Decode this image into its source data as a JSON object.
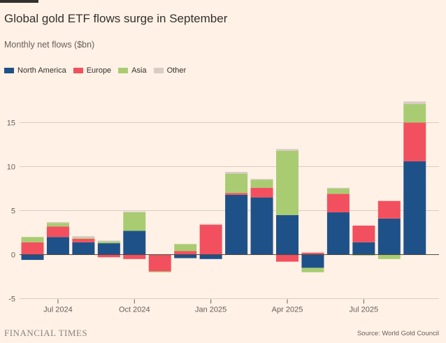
{
  "header": {
    "title": "Global gold ETF flows surge in September",
    "subtitle": "Monthly net flows ($bn)"
  },
  "footer": {
    "logo": "FINANCIAL TIMES",
    "source": "Source: World Gold Council"
  },
  "colors": {
    "background": "#fff1e5",
    "north_america": "#1f5189",
    "europe": "#f2505f",
    "asia": "#a9cc72",
    "other": "#d8ccc4",
    "grid": "#d9cdc3",
    "zero_line": "#4d4845"
  },
  "chart_data": {
    "type": "bar",
    "stacked": true,
    "title": "Global gold ETF flows surge in September",
    "subtitle": "Monthly net flows ($bn)",
    "categories": [
      "Jun 2024",
      "Jul 2024",
      "Aug 2024",
      "Sep 2024",
      "Oct 2024",
      "Nov 2024",
      "Dec 2024",
      "Jan 2025",
      "Feb 2025",
      "Mar 2025",
      "Apr 2025",
      "May 2025",
      "Jun 2025",
      "Jul 2025",
      "Aug 2025",
      "Sep 2025"
    ],
    "x_tick_labels": [
      {
        "index": 1,
        "label": "Jul 2024"
      },
      {
        "index": 4,
        "label": "Oct 2024"
      },
      {
        "index": 7,
        "label": "Jan 2025"
      },
      {
        "index": 10,
        "label": "Apr 2025"
      },
      {
        "index": 13,
        "label": "Jul 2025"
      }
    ],
    "y_ticks": [
      -5,
      0,
      5,
      10,
      15
    ],
    "ylim": [
      -5,
      18
    ],
    "grid": true,
    "legend_position": "top-left",
    "series": [
      {
        "name": "North America",
        "color": "#1f5189",
        "values": [
          -0.6,
          2.0,
          1.4,
          1.3,
          2.7,
          0.0,
          -0.4,
          -0.5,
          6.8,
          6.5,
          4.5,
          -1.5,
          4.8,
          1.4,
          4.1,
          10.6
        ]
      },
      {
        "name": "Europe",
        "color": "#f2505f",
        "values": [
          1.4,
          1.2,
          0.4,
          -0.3,
          -0.5,
          -1.9,
          0.4,
          3.4,
          0.2,
          1.1,
          -0.8,
          0.2,
          2.1,
          1.9,
          2.0,
          4.4
        ]
      },
      {
        "name": "Asia",
        "color": "#a9cc72",
        "values": [
          0.6,
          0.4,
          0.1,
          0.2,
          2.1,
          -0.1,
          0.8,
          0.0,
          2.2,
          0.9,
          7.3,
          -0.5,
          0.6,
          -0.1,
          -0.5,
          2.1
        ]
      },
      {
        "name": "Other",
        "color": "#d8ccc4",
        "values": [
          0.0,
          0.1,
          0.2,
          0.1,
          0.1,
          0.0,
          0.0,
          0.1,
          0.2,
          0.1,
          0.2,
          0.1,
          0.1,
          0.0,
          0.0,
          0.3
        ]
      }
    ]
  }
}
